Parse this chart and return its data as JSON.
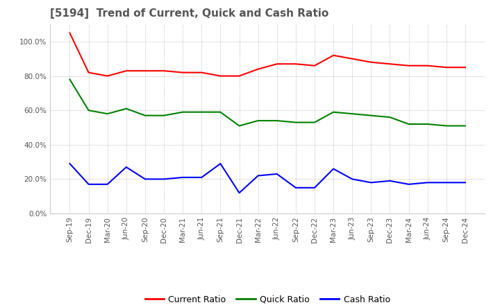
{
  "title": "[5194]  Trend of Current, Quick and Cash Ratio",
  "title_fontsize": 11,
  "title_color": "#555555",
  "background_color": "#ffffff",
  "plot_background": "#ffffff",
  "ylim": [
    0.0,
    110.0
  ],
  "ytick_values": [
    0,
    20,
    40,
    60,
    80,
    100
  ],
  "x_labels": [
    "Sep-19",
    "Dec-19",
    "Mar-20",
    "Jun-20",
    "Sep-20",
    "Dec-20",
    "Mar-21",
    "Jun-21",
    "Sep-21",
    "Dec-21",
    "Mar-22",
    "Jun-22",
    "Sep-22",
    "Dec-22",
    "Mar-23",
    "Jun-23",
    "Sep-23",
    "Dec-23",
    "Mar-24",
    "Jun-24",
    "Sep-24",
    "Dec-24"
  ],
  "current_ratio": [
    105,
    82,
    80,
    83,
    83,
    83,
    82,
    82,
    80,
    80,
    84,
    87,
    87,
    86,
    92,
    90,
    88,
    87,
    86,
    86,
    85,
    85
  ],
  "quick_ratio": [
    78,
    60,
    58,
    61,
    57,
    57,
    59,
    59,
    59,
    51,
    54,
    54,
    53,
    53,
    59,
    58,
    57,
    56,
    52,
    52,
    51,
    51
  ],
  "cash_ratio": [
    29,
    17,
    17,
    27,
    20,
    20,
    21,
    21,
    29,
    12,
    22,
    23,
    15,
    15,
    26,
    20,
    18,
    19,
    17,
    18,
    18,
    18
  ],
  "current_color": "#ff0000",
  "quick_color": "#008000",
  "cash_color": "#0000ff",
  "line_width": 1.5,
  "legend_fontsize": 9,
  "grid_color": "#aaaaaa",
  "tick_fontsize": 7.5
}
